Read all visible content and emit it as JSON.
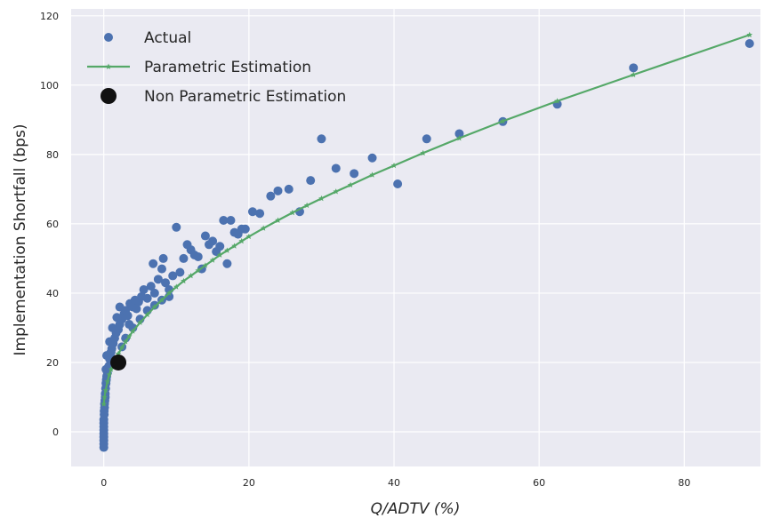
{
  "chart_data": {
    "type": "scatter",
    "xlabel": "Q/ADTV (%)",
    "ylabel": "Implementation Shortfall (bps)",
    "xlim": [
      -4.5,
      90.5
    ],
    "ylim": [
      -10,
      122
    ],
    "xticks": [
      0,
      20,
      40,
      60,
      80
    ],
    "yticks": [
      0,
      20,
      40,
      60,
      80,
      100,
      120
    ],
    "grid": true,
    "background": "#eaeaf2",
    "legend": {
      "placement": "top-left",
      "entries": [
        "Actual",
        "Parametric Estimation",
        "Non Parametric Estimation"
      ]
    },
    "series": [
      {
        "name": "Actual",
        "kind": "scatter",
        "color": "#4c72b0",
        "points": [
          [
            0,
            -4.5
          ],
          [
            0,
            -3.5
          ],
          [
            0,
            -2.5
          ],
          [
            0,
            -1.5
          ],
          [
            0,
            -0.5
          ],
          [
            0,
            0.5
          ],
          [
            0,
            1.5
          ],
          [
            0,
            2.5
          ],
          [
            0,
            3.5
          ],
          [
            0.05,
            5
          ],
          [
            0.05,
            6
          ],
          [
            0.1,
            7
          ],
          [
            0.1,
            8
          ],
          [
            0.15,
            9
          ],
          [
            0.2,
            10
          ],
          [
            0.2,
            11
          ],
          [
            0.25,
            12.5
          ],
          [
            0.3,
            14
          ],
          [
            0.35,
            15
          ],
          [
            0.4,
            16
          ],
          [
            0.5,
            17
          ],
          [
            0.3,
            18
          ],
          [
            0.6,
            18.5
          ],
          [
            0.7,
            19
          ],
          [
            0.4,
            22
          ],
          [
            0.8,
            21
          ],
          [
            0.9,
            22.5
          ],
          [
            1.0,
            23
          ],
          [
            1.1,
            24
          ],
          [
            0.8,
            26
          ],
          [
            1.3,
            25.5
          ],
          [
            1.5,
            27
          ],
          [
            1.7,
            28.5
          ],
          [
            1.2,
            30
          ],
          [
            2.0,
            29.5
          ],
          [
            2.2,
            31
          ],
          [
            1.8,
            33
          ],
          [
            2.5,
            32.5
          ],
          [
            2.8,
            34
          ],
          [
            3.0,
            35
          ],
          [
            3.3,
            33.5
          ],
          [
            2.2,
            36
          ],
          [
            3.6,
            37
          ],
          [
            4.0,
            36
          ],
          [
            4.3,
            38
          ],
          [
            4.8,
            37.5
          ],
          [
            5.2,
            39
          ],
          [
            5.5,
            41
          ],
          [
            6.0,
            38.5
          ],
          [
            6.5,
            42
          ],
          [
            7.0,
            40
          ],
          [
            7.5,
            44
          ],
          [
            8.0,
            47
          ],
          [
            8.5,
            43
          ],
          [
            9.0,
            39
          ],
          [
            9.5,
            45
          ],
          [
            10.0,
            59
          ],
          [
            10.5,
            46
          ],
          [
            11.0,
            50
          ],
          [
            11.5,
            54
          ],
          [
            12.0,
            52.5
          ],
          [
            12.5,
            51
          ],
          [
            13.0,
            50.5
          ],
          [
            13.5,
            47
          ],
          [
            14.0,
            56.5
          ],
          [
            14.5,
            54
          ],
          [
            15.0,
            55
          ],
          [
            15.5,
            52
          ],
          [
            16.0,
            53.5
          ],
          [
            16.5,
            61
          ],
          [
            17.0,
            48.5
          ],
          [
            17.5,
            61
          ],
          [
            18.0,
            57.5
          ],
          [
            18.5,
            57
          ],
          [
            19.0,
            58.5
          ],
          [
            19.5,
            58.5
          ],
          [
            20.5,
            63.5
          ],
          [
            21.5,
            63
          ],
          [
            23.0,
            68
          ],
          [
            24.0,
            69.5
          ],
          [
            25.5,
            70
          ],
          [
            27.0,
            63.5
          ],
          [
            28.5,
            72.5
          ],
          [
            30.0,
            84.5
          ],
          [
            32.0,
            76
          ],
          [
            34.5,
            74.5
          ],
          [
            37.0,
            79
          ],
          [
            40.5,
            71.5
          ],
          [
            44.5,
            84.5
          ],
          [
            49.0,
            86
          ],
          [
            55.0,
            89.5
          ],
          [
            62.5,
            94.5
          ],
          [
            73.0,
            105
          ],
          [
            89.0,
            112
          ],
          [
            1.5,
            20.5
          ],
          [
            2.5,
            24.5
          ],
          [
            3.0,
            27
          ],
          [
            4.0,
            30
          ],
          [
            5.0,
            32.5
          ],
          [
            6.0,
            35
          ],
          [
            7.0,
            36.5
          ],
          [
            8.0,
            38
          ],
          [
            9.0,
            41
          ],
          [
            6.8,
            48.5
          ],
          [
            8.2,
            50
          ],
          [
            3.5,
            31
          ],
          [
            4.5,
            35.5
          ]
        ]
      },
      {
        "name": "Parametric Estimation",
        "kind": "line",
        "color": "#55a868",
        "marker": "star",
        "points": [
          [
            0,
            8
          ],
          [
            0.1,
            10
          ],
          [
            0.25,
            12
          ],
          [
            0.5,
            14.5
          ],
          [
            0.75,
            16.5
          ],
          [
            1.0,
            18
          ],
          [
            1.5,
            20.5
          ],
          [
            2.0,
            22.5
          ],
          [
            2.5,
            24.3
          ],
          [
            3.0,
            26
          ],
          [
            3.5,
            27.5
          ],
          [
            4.0,
            29
          ],
          [
            5.0,
            31.5
          ],
          [
            6.0,
            33.8
          ],
          [
            7.0,
            36
          ],
          [
            8.0,
            38
          ],
          [
            9.0,
            40
          ],
          [
            10.0,
            41.8
          ],
          [
            11.0,
            43.5
          ],
          [
            12.0,
            45
          ],
          [
            13.0,
            46.5
          ],
          [
            14.0,
            48
          ],
          [
            15.0,
            49.5
          ],
          [
            16.0,
            51
          ],
          [
            17.0,
            52.3
          ],
          [
            18.0,
            53.6
          ],
          [
            19.0,
            55
          ],
          [
            20.0,
            56.3
          ],
          [
            22.0,
            58.7
          ],
          [
            24.0,
            61
          ],
          [
            26.0,
            63.2
          ],
          [
            28.0,
            65.3
          ],
          [
            30.0,
            67.3
          ],
          [
            32.0,
            69.3
          ],
          [
            34.0,
            71.2
          ],
          [
            37.0,
            74.1
          ],
          [
            40.0,
            76.8
          ],
          [
            44.0,
            80.4
          ],
          [
            49.0,
            84.7
          ],
          [
            55.0,
            89.6
          ],
          [
            62.5,
            95.4
          ],
          [
            73.0,
            103
          ],
          [
            89.0,
            114.5
          ]
        ]
      },
      {
        "name": "Non Parametric Estimation",
        "kind": "scatter",
        "color": "#111111",
        "points": [
          [
            2,
            20
          ]
        ]
      }
    ]
  }
}
